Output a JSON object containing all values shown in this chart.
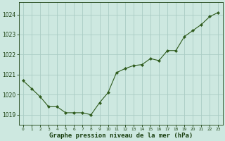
{
  "x": [
    0,
    1,
    2,
    3,
    4,
    5,
    6,
    7,
    8,
    9,
    10,
    11,
    12,
    13,
    14,
    15,
    16,
    17,
    18,
    19,
    20,
    21,
    22,
    23
  ],
  "y": [
    1020.7,
    1020.3,
    1019.9,
    1019.4,
    1019.4,
    1019.1,
    1019.1,
    1019.1,
    1019.0,
    1019.6,
    1020.1,
    1021.1,
    1021.3,
    1021.45,
    1021.5,
    1021.8,
    1021.7,
    1022.2,
    1022.2,
    1022.9,
    1023.2,
    1023.5,
    1023.9,
    1024.1
  ],
  "line_color": "#2d5a1b",
  "marker": "D",
  "markersize": 2.2,
  "bg_color": "#cde8e0",
  "plot_bg_color": "#cde8e0",
  "grid_color": "#aaccC4",
  "xlabel": "Graphe pression niveau de la mer (hPa)",
  "xlabel_color": "#1a4010",
  "tick_color": "#1a4010",
  "ylim": [
    1018.5,
    1024.6
  ],
  "yticks": [
    1019,
    1020,
    1021,
    1022,
    1023,
    1024
  ],
  "xlim": [
    -0.5,
    23.5
  ],
  "xlabel_fontsize": 6.5,
  "ytick_fontsize": 5.5,
  "xtick_fontsize": 4.2
}
